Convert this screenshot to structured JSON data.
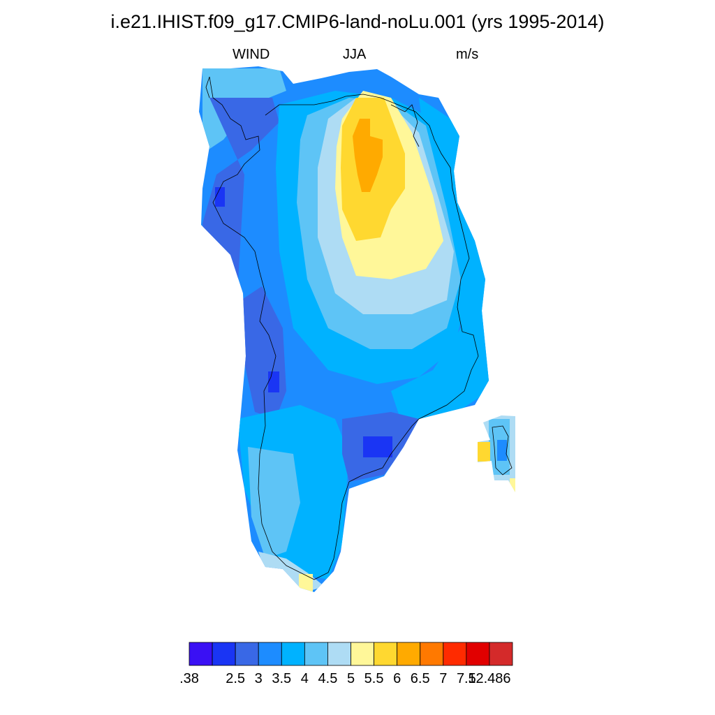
{
  "title": "i.e21.IHIST.f09_g17.CMIP6-land-noLu.001 (yrs 1995-2014)",
  "subtitle": {
    "left": "WIND",
    "center": "JJA",
    "right": "m/s"
  },
  "colorbar": {
    "colors": [
      "#3a10f4",
      "#1a35f4",
      "#3968e6",
      "#1d8cff",
      "#00b2ff",
      "#5ec4f6",
      "#aedcf4",
      "#fff799",
      "#ffd830",
      "#ffaa00",
      "#ff7900",
      "#ff2b00",
      "#e10000",
      "#d42a2a"
    ],
    "labels": [
      ".38",
      "2.5",
      "3",
      "3.5",
      "4",
      "4.5",
      "5",
      "5.5",
      "6",
      "6.5",
      "7",
      "7.5",
      "12.486"
    ]
  },
  "legend_colors": {
    "level_0": "#3a10f4",
    "level_1": "#1a35f4",
    "level_2": "#3968e6",
    "level_3": "#1d8cff",
    "level_4": "#00b2ff",
    "level_5": "#5ec4f6",
    "level_6": "#aedcf4",
    "level_7": "#fff799",
    "level_8": "#ffd830",
    "level_9": "#ffaa00"
  }
}
